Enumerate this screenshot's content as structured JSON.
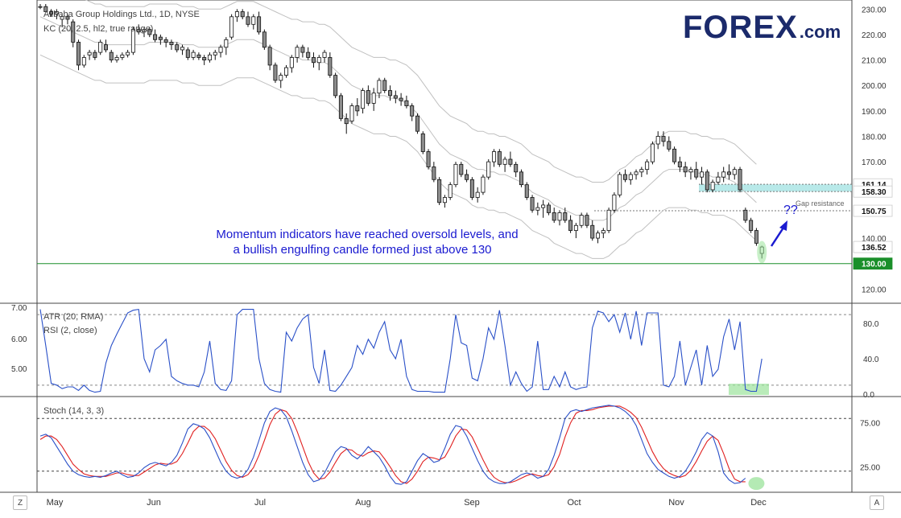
{
  "chart_data": {
    "type": "candlestick",
    "title": "Alibaba Group Holdings Ltd., 1D, NYSE",
    "overlay_label": "KC (20, 2.5, hl2, true range)",
    "x_labels": [
      "May",
      "Jun",
      "Jul",
      "Aug",
      "Sep",
      "Oct",
      "Nov",
      "Dec"
    ],
    "price_axis": {
      "ticks": [
        230,
        220,
        210,
        200,
        190,
        180,
        170,
        160,
        150,
        140,
        130,
        120
      ],
      "ylim": [
        116,
        232
      ]
    },
    "price_badges": [
      {
        "value": "161.14",
        "style": "plain"
      },
      {
        "value": "158.30",
        "style": "plain"
      },
      {
        "value": "150.75",
        "style": "plain"
      },
      {
        "value": "136.52",
        "style": "plain"
      },
      {
        "value": "130.00",
        "style": "green"
      }
    ],
    "levels": {
      "support": 130,
      "gap_low": 158.3,
      "gap_high": 161.14,
      "gap_resistance": 150.75
    },
    "candles": [
      [
        231,
        232,
        230,
        231
      ],
      [
        231,
        232,
        229,
        229
      ],
      [
        229,
        230,
        227,
        228
      ],
      [
        228,
        230,
        226,
        229
      ],
      [
        226,
        228,
        223,
        227
      ],
      [
        227,
        228,
        224,
        226
      ],
      [
        225,
        226,
        215,
        217
      ],
      [
        217,
        218,
        206,
        208
      ],
      [
        208,
        212,
        207,
        211
      ],
      [
        212,
        214,
        210,
        213
      ],
      [
        213,
        214,
        210,
        211
      ],
      [
        213,
        218,
        212,
        217
      ],
      [
        216,
        218,
        213,
        214
      ],
      [
        213,
        214,
        209,
        210
      ],
      [
        210,
        212,
        209,
        211
      ],
      [
        211,
        213,
        210,
        212
      ],
      [
        212,
        214,
        211,
        213
      ],
      [
        213,
        223,
        212,
        222
      ],
      [
        222,
        224,
        220,
        221
      ],
      [
        221,
        223,
        219,
        222
      ],
      [
        222,
        223,
        219,
        220
      ],
      [
        220,
        222,
        217,
        218
      ],
      [
        219,
        220,
        216,
        218
      ],
      [
        218,
        219,
        215,
        217
      ],
      [
        217,
        218,
        214,
        216
      ],
      [
        216,
        217,
        213,
        214
      ],
      [
        214,
        216,
        212,
        215
      ],
      [
        214,
        215,
        210,
        211
      ],
      [
        211,
        214,
        210,
        213
      ],
      [
        212,
        213,
        210,
        211
      ],
      [
        211,
        212,
        208,
        210
      ],
      [
        210,
        213,
        209,
        212
      ],
      [
        212,
        214,
        210,
        213
      ],
      [
        213,
        216,
        211,
        215
      ],
      [
        215,
        219,
        212,
        218
      ],
      [
        219,
        228,
        218,
        227
      ],
      [
        227,
        230,
        225,
        229
      ],
      [
        229,
        230,
        226,
        227
      ],
      [
        227,
        229,
        223,
        224
      ],
      [
        224,
        228,
        222,
        227
      ],
      [
        227,
        229,
        220,
        221
      ],
      [
        221,
        222,
        214,
        215
      ],
      [
        215,
        216,
        206,
        208
      ],
      [
        208,
        209,
        201,
        202
      ],
      [
        202,
        205,
        199,
        204
      ],
      [
        204,
        208,
        203,
        207
      ],
      [
        207,
        212,
        205,
        211
      ],
      [
        211,
        216,
        209,
        215
      ],
      [
        215,
        216,
        211,
        213
      ],
      [
        213,
        215,
        210,
        211
      ],
      [
        211,
        213,
        207,
        209
      ],
      [
        209,
        212,
        206,
        211
      ],
      [
        211,
        214,
        209,
        213
      ],
      [
        211,
        213,
        203,
        204
      ],
      [
        204,
        205,
        195,
        196
      ],
      [
        196,
        197,
        186,
        187
      ],
      [
        187,
        189,
        181,
        185
      ],
      [
        186,
        193,
        185,
        192
      ],
      [
        192,
        195,
        188,
        190
      ],
      [
        191,
        199,
        189,
        198
      ],
      [
        198,
        200,
        192,
        193
      ],
      [
        193,
        199,
        190,
        197
      ],
      [
        197,
        203,
        195,
        202
      ],
      [
        202,
        203,
        197,
        198
      ],
      [
        198,
        200,
        194,
        196
      ],
      [
        196,
        198,
        193,
        195
      ],
      [
        195,
        197,
        192,
        194
      ],
      [
        194,
        196,
        191,
        192
      ],
      [
        192,
        193,
        186,
        188
      ],
      [
        188,
        189,
        181,
        182
      ],
      [
        181,
        182,
        173,
        174
      ],
      [
        174,
        175,
        167,
        168
      ],
      [
        168,
        170,
        162,
        163
      ],
      [
        163,
        164,
        153,
        154
      ],
      [
        154,
        157,
        152,
        156
      ],
      [
        156,
        162,
        155,
        161
      ],
      [
        161,
        170,
        160,
        169
      ],
      [
        169,
        170,
        164,
        165
      ],
      [
        165,
        167,
        162,
        163
      ],
      [
        163,
        164,
        155,
        156
      ],
      [
        156,
        160,
        154,
        158
      ],
      [
        158,
        165,
        157,
        164
      ],
      [
        164,
        171,
        163,
        170
      ],
      [
        170,
        175,
        168,
        174
      ],
      [
        174,
        175,
        168,
        169
      ],
      [
        169,
        172,
        166,
        171
      ],
      [
        171,
        174,
        168,
        169
      ],
      [
        169,
        170,
        164,
        166
      ],
      [
        166,
        167,
        160,
        161
      ],
      [
        161,
        162,
        155,
        156
      ],
      [
        156,
        157,
        150,
        151
      ],
      [
        151,
        154,
        149,
        152
      ],
      [
        152,
        155,
        148,
        153
      ],
      [
        153,
        154,
        149,
        150
      ],
      [
        150,
        152,
        146,
        147
      ],
      [
        147,
        151,
        145,
        150
      ],
      [
        150,
        152,
        146,
        147
      ],
      [
        147,
        149,
        142,
        143
      ],
      [
        143,
        146,
        140,
        145
      ],
      [
        145,
        150,
        144,
        149
      ],
      [
        149,
        150,
        144,
        145
      ],
      [
        145,
        147,
        139,
        140
      ],
      [
        140,
        143,
        138,
        142
      ],
      [
        142,
        144,
        140,
        143
      ],
      [
        143,
        152,
        142,
        151
      ],
      [
        151,
        158,
        150,
        157
      ],
      [
        157,
        166,
        156,
        165
      ],
      [
        165,
        167,
        162,
        163
      ],
      [
        163,
        166,
        161,
        165
      ],
      [
        165,
        167,
        163,
        166
      ],
      [
        166,
        168,
        164,
        167
      ],
      [
        167,
        171,
        165,
        170
      ],
      [
        170,
        178,
        169,
        177
      ],
      [
        177,
        182,
        175,
        180
      ],
      [
        180,
        182,
        176,
        178
      ],
      [
        178,
        180,
        174,
        175
      ],
      [
        175,
        176,
        169,
        170
      ],
      [
        170,
        172,
        166,
        168
      ],
      [
        168,
        170,
        164,
        166
      ],
      [
        166,
        168,
        163,
        167
      ],
      [
        167,
        170,
        163,
        164
      ],
      [
        164,
        168,
        161,
        166
      ],
      [
        166,
        167,
        158,
        159
      ],
      [
        159,
        163,
        158,
        162
      ],
      [
        162,
        166,
        161,
        164
      ],
      [
        164,
        168,
        162,
        166
      ],
      [
        166,
        169,
        163,
        165
      ],
      [
        165,
        168,
        163,
        167
      ],
      [
        167,
        168,
        158,
        159
      ],
      [
        151,
        152,
        146,
        147
      ],
      [
        147,
        148,
        142,
        143
      ],
      [
        143,
        144,
        137,
        138
      ],
      [
        134,
        137,
        132,
        136.52
      ]
    ],
    "keltner": {
      "mid": [
        227,
        226,
        225,
        224,
        223,
        222,
        221,
        220,
        219,
        218,
        217,
        217,
        216,
        216,
        216,
        216,
        216,
        216,
        216,
        216,
        217,
        217,
        217,
        217,
        217,
        217,
        216,
        216,
        216,
        215,
        215,
        215,
        215,
        215,
        216,
        217,
        218,
        218,
        218,
        218,
        217,
        216,
        215,
        214,
        213,
        212,
        211,
        211,
        210,
        210,
        210,
        209,
        209,
        208,
        206,
        204,
        202,
        200,
        199,
        198,
        197,
        196,
        196,
        196,
        195,
        195,
        194,
        193,
        191,
        189,
        186,
        183,
        180,
        177,
        175,
        173,
        172,
        171,
        170,
        168,
        167,
        167,
        166,
        166,
        165,
        165,
        164,
        163,
        162,
        160,
        158,
        157,
        156,
        155,
        153,
        152,
        151,
        150,
        149,
        149,
        148,
        147,
        147,
        147,
        148,
        150,
        152,
        153,
        155,
        157,
        158,
        160,
        162,
        164,
        166,
        167,
        167,
        167,
        167,
        166,
        166,
        165,
        165,
        164,
        164,
        164,
        163,
        162,
        160,
        158,
        156,
        154
      ],
      "band_width": 15
    },
    "atr_rsi": {
      "atr_label": "ATR (20, RMA)",
      "rsi_label": "RSI (2, close)",
      "left_ticks": [
        "7.00",
        "6.00",
        "5.00"
      ],
      "right_ticks": [
        "80.0",
        "40.0",
        "0.0"
      ],
      "rsi": [
        96,
        55,
        12,
        10,
        6,
        8,
        8,
        4,
        10,
        4,
        2,
        3,
        35,
        55,
        68,
        80,
        92,
        95,
        96,
        40,
        25,
        50,
        55,
        62,
        20,
        15,
        12,
        10,
        10,
        8,
        25,
        60,
        12,
        5,
        4,
        15,
        90,
        96,
        96,
        96,
        40,
        12,
        5,
        3,
        2,
        70,
        60,
        75,
        85,
        90,
        30,
        12,
        50,
        4,
        3,
        10,
        20,
        30,
        55,
        45,
        62,
        52,
        70,
        82,
        50,
        40,
        62,
        20,
        5,
        3,
        3,
        3,
        2,
        2,
        2,
        40,
        90,
        58,
        55,
        18,
        15,
        40,
        75,
        62,
        95,
        55,
        10,
        25,
        12,
        3,
        8,
        60,
        5,
        5,
        20,
        8,
        25,
        8,
        5,
        7,
        8,
        75,
        94,
        92,
        82,
        90,
        70,
        92,
        62,
        94,
        55,
        92,
        92,
        92,
        10,
        8,
        20,
        60,
        10,
        30,
        50,
        10,
        55,
        20,
        28,
        65,
        85,
        50,
        82,
        5,
        3,
        3,
        40
      ],
      "rsi_levels": [
        10,
        90
      ],
      "ylim": [
        -2,
        102
      ]
    },
    "stoch": {
      "label": "Stoch (14, 3, 3)",
      "right_ticks": [
        "75.00",
        "25.00"
      ],
      "k": [
        60,
        62,
        58,
        48,
        38,
        28,
        20,
        16,
        14,
        13,
        14,
        13,
        15,
        18,
        20,
        16,
        13,
        14,
        18,
        24,
        28,
        30,
        28,
        26,
        30,
        38,
        52,
        68,
        74,
        72,
        68,
        58,
        44,
        30,
        20,
        14,
        12,
        14,
        22,
        36,
        55,
        75,
        88,
        92,
        90,
        82,
        66,
        48,
        30,
        16,
        8,
        10,
        18,
        30,
        42,
        48,
        46,
        38,
        34,
        40,
        48,
        42,
        36,
        26,
        14,
        6,
        5,
        8,
        20,
        32,
        40,
        36,
        30,
        32,
        46,
        62,
        72,
        70,
        60,
        46,
        32,
        20,
        12,
        8,
        6,
        6,
        8,
        12,
        16,
        18,
        16,
        12,
        14,
        22,
        38,
        58,
        80,
        88,
        90,
        88,
        90,
        92,
        93,
        94,
        95,
        94,
        92,
        88,
        82,
        72,
        56,
        40,
        30,
        22,
        18,
        14,
        12,
        14,
        20,
        30,
        42,
        56,
        64,
        60,
        42,
        18,
        10,
        6,
        7,
        12
      ],
      "d": [
        56,
        60,
        60,
        56,
        48,
        38,
        28,
        22,
        17,
        15,
        14,
        14,
        14,
        16,
        18,
        18,
        16,
        15,
        15,
        19,
        23,
        27,
        29,
        28,
        28,
        31,
        40,
        52,
        65,
        71,
        71,
        66,
        57,
        44,
        31,
        21,
        15,
        13,
        16,
        24,
        38,
        55,
        73,
        85,
        90,
        88,
        80,
        65,
        48,
        31,
        18,
        11,
        12,
        19,
        30,
        40,
        45,
        44,
        39,
        37,
        41,
        43,
        42,
        34,
        25,
        15,
        8,
        6,
        11,
        20,
        31,
        36,
        35,
        33,
        36,
        47,
        60,
        68,
        67,
        59,
        46,
        33,
        21,
        13,
        9,
        7,
        7,
        9,
        12,
        15,
        17,
        15,
        14,
        16,
        25,
        39,
        59,
        75,
        86,
        89,
        89,
        90,
        92,
        93,
        94,
        94,
        94,
        91,
        87,
        81,
        70,
        56,
        42,
        31,
        23,
        18,
        15,
        13,
        15,
        21,
        31,
        43,
        54,
        60,
        55,
        40,
        23,
        11,
        8,
        8
      ],
      "levels": [
        80,
        20
      ],
      "ylim": [
        -4,
        104
      ]
    }
  },
  "annotation": {
    "line1": "Momentum indicators have reached oversold levels, and",
    "line2": "a bullish engulfing candle formed just above 130",
    "question": "??",
    "gap_label": "Gap resistance"
  },
  "logo": {
    "brand": "FOREX",
    "suffix": ".com"
  },
  "corner_buttons": {
    "left": "Z",
    "right": "A"
  },
  "colors": {
    "bull": "#ffffff",
    "bear": "#8c8c8c",
    "candle_outline": "#111111",
    "keltner": "#c0c0c0",
    "support": "#1a8f2a",
    "gap_zone": "#a6e3e3",
    "rsi": "#2a50c8",
    "stoch_k": "#2a50c8",
    "stoch_d": "#e02020",
    "annotation": "#1a1ad0",
    "highlight": "#9be39b",
    "logo": "#1b2a6b"
  }
}
